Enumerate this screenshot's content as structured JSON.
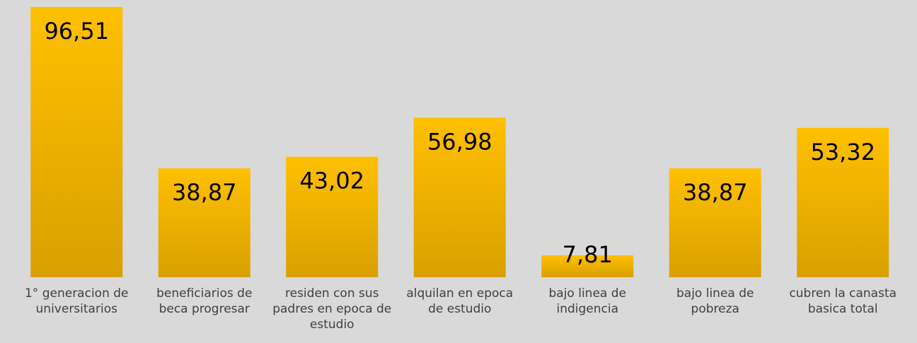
{
  "chart_data": {
    "type": "bar",
    "categories": [
      "1° generacion de universitarios",
      "beneficiarios de beca progresar",
      "residen con sus padres en epoca de estudio",
      "alquilan en epoca de estudio",
      "bajo linea de indigencia",
      "bajo linea de pobreza",
      "cubren la canasta basica total"
    ],
    "values": [
      96.51,
      38.87,
      43.02,
      56.98,
      7.81,
      38.87,
      53.32
    ],
    "value_labels": [
      "96,51",
      "38,87",
      "43,02",
      "56,98",
      "7,81",
      "38,87",
      "53,32"
    ],
    "color": "#ffc000",
    "ylim": [
      0,
      100
    ]
  }
}
